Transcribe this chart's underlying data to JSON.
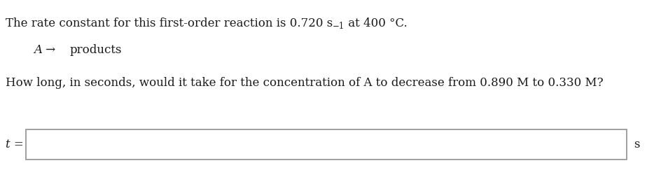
{
  "line1_part1": "The rate constant for this first-order reaction is 0.720 s",
  "line1_sup": "−1",
  "line1_part2": " at 400 °C.",
  "line2_A": "A",
  "line2_arrow": " → ",
  "line2_products": "products",
  "line3": "How long, in seconds, would it take for the concentration of A to decrease from 0.890 M to 0.330 M?",
  "label_t": "t =",
  "label_s": "s",
  "bg_color": "#ffffff",
  "text_color": "#1a1a1a",
  "box_edge_color": "#999999",
  "font_size": 12,
  "sup_font_size": 8.5,
  "label_font_size": 12
}
